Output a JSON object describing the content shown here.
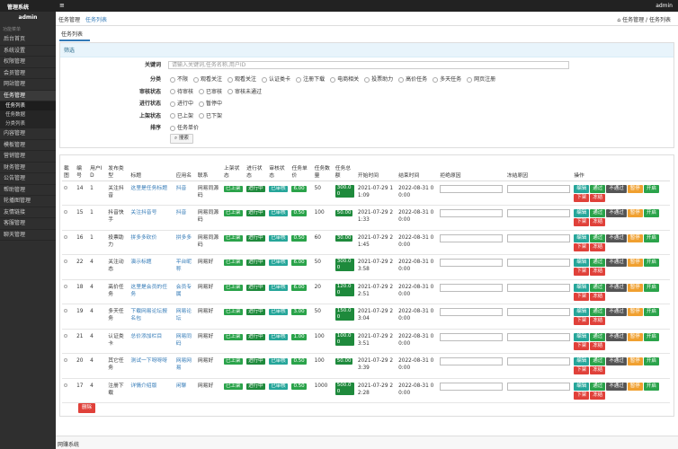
{
  "topbar": {
    "brand": "管理系统",
    "user": "admin"
  },
  "sidebar": {
    "user": "admin",
    "section": "功能菜单",
    "menu": [
      "后台首页",
      "系统设置",
      "权限管理",
      "会员管理",
      "网站管理",
      "任务管理",
      "内容管理",
      "模板管理",
      "营销管理",
      "财务管理",
      "公告管理",
      "帮助管理",
      "轮播图管理",
      "友情链接",
      "客服管理",
      "聊天管理"
    ],
    "submenu": [
      "任务列表",
      "任务数据",
      "分类列表"
    ]
  },
  "breadcrumb": {
    "tabs": [
      "任务管理",
      "任务列表"
    ],
    "right": [
      "任务管理",
      "任务列表"
    ]
  },
  "tab": "任务列表",
  "filter": {
    "heading": "筛选",
    "keyword": {
      "label": "关键词",
      "placeholder": "请输入关键词,任务名称,用户ID"
    },
    "groups": [
      {
        "label": "分类",
        "options": [
          "不限",
          "观看关注",
          "观看关注",
          "认证类卡",
          "注册下载",
          "电商相关",
          "投票助力",
          "高价任务",
          "多天任务",
          "网页注册"
        ]
      },
      {
        "label": "审核状态",
        "options": [
          "待审核",
          "已审核",
          "审核未通过"
        ]
      },
      {
        "label": "进行状态",
        "options": [
          "进行中",
          "暂停中"
        ]
      },
      {
        "label": "上架状态",
        "options": [
          "已上架",
          "已下架"
        ]
      },
      {
        "label": "排序",
        "options": [
          "任务单价"
        ]
      }
    ],
    "search": "搜索"
  },
  "table": {
    "headers": [
      "截图",
      "编号",
      "用户ID",
      "发布类型",
      "标题",
      "应用名",
      "联系",
      "上架状态",
      "进行状态",
      "审核状态",
      "任务单价",
      "任务数量",
      "任务总额",
      "开始时间",
      "结束时间",
      "拒绝原因",
      "冻结原因",
      "操作"
    ],
    "ops": [
      "编辑",
      "通过",
      "不通过",
      "暂停",
      "开启",
      "下架",
      "冻结"
    ],
    "rows": [
      [
        "14",
        "1",
        "关注抖音",
        "这里是任务标题",
        "抖音",
        "网易同源码",
        "已上架",
        "进行中",
        "已审核",
        "6.00",
        "50",
        "300.00",
        "2021-07-29 11:09",
        "2022-08-31 00:00"
      ],
      [
        "15",
        "1",
        "抖音快手",
        "关注抖音号",
        "抖音",
        "网易同源码",
        "已上架",
        "进行中",
        "已审核",
        "0.50",
        "100",
        "50.00",
        "2021-07-29 21:33",
        "2022-08-31 00:00"
      ],
      [
        "16",
        "1",
        "投票助力",
        "拼多多砍价",
        "拼多多",
        "网易同源码",
        "已上架",
        "进行中",
        "已审核",
        "0.50",
        "60",
        "30.00",
        "2021-07-29 21:45",
        "2022-08-31 00:00"
      ],
      [
        "22",
        "4",
        "关注动态",
        "演示标题",
        "平台昵称",
        "网易好",
        "已上架",
        "进行中",
        "已审核",
        "6.00",
        "50",
        "300.00",
        "2021-07-29 23:58",
        "2022-08-31 00:00"
      ],
      [
        "18",
        "4",
        "高价任务",
        "这里是会员的任务",
        "会员专属",
        "网易好",
        "已上架",
        "进行中",
        "已审核",
        "6.00",
        "20",
        "120.00",
        "2021-07-29 22:51",
        "2022-08-31 00:00"
      ],
      [
        "19",
        "4",
        "多天任务",
        "下载网易论坛报名包",
        "网易论坛",
        "网易好",
        "已上架",
        "进行中",
        "已审核",
        "3.00",
        "50",
        "150.00",
        "2021-07-29 23:04",
        "2022-08-31 00:00"
      ],
      [
        "21",
        "4",
        "认证类卡",
        "总价添加栏目",
        "网易同码",
        "网易好",
        "已上架",
        "进行中",
        "已审核",
        "1.00",
        "100",
        "100.00",
        "2021-07-29 23:51",
        "2022-08-31 00:00"
      ],
      [
        "20",
        "4",
        "其它任务",
        "测试一下呀呀呀",
        "网易网易",
        "网易好",
        "已上架",
        "进行中",
        "已审核",
        "0.50",
        "100",
        "50.00",
        "2021-07-29 23:39",
        "2022-08-31 00:00"
      ],
      [
        "17",
        "4",
        "注册下载",
        "详情介绍版",
        "闲聊",
        "网易好",
        "已上架",
        "进行中",
        "已审核",
        "0.50",
        "1000",
        "500.00",
        "2021-07-29 22:28",
        "2022-08-31 00:00"
      ]
    ],
    "delete": "删除"
  },
  "footer": "网赚系统"
}
